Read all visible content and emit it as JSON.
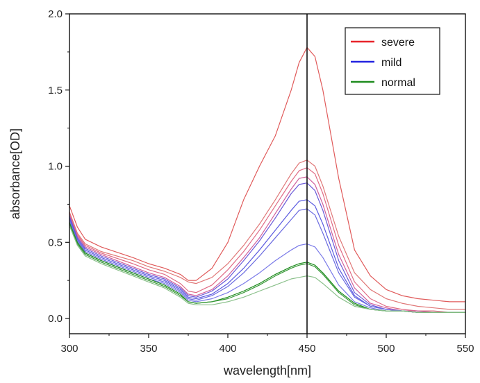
{
  "chart_data": {
    "type": "line",
    "title": "",
    "xlabel": "wavelength[nm]",
    "ylabel": "absorbance[OD]",
    "xlim": [
      300,
      550
    ],
    "ylim": [
      -0.1,
      2.0
    ],
    "x_ticks": [
      "300",
      "350",
      "400",
      "450",
      "500",
      "550"
    ],
    "y_ticks": [
      "0.0",
      "0.5",
      "1.0",
      "1.5",
      "2.0"
    ],
    "grid": false,
    "legend_position": "top-right",
    "reference_line_x": 450,
    "legend": [
      {
        "label": "severe",
        "color": "#e8242a"
      },
      {
        "label": "mild",
        "color": "#2323e0"
      },
      {
        "label": "normal",
        "color": "#1e8c1e"
      }
    ],
    "series": [
      {
        "group": "severe",
        "color": "#e05a5a",
        "x": [
          300,
          305,
          310,
          320,
          340,
          350,
          360,
          370,
          375,
          380,
          390,
          400,
          410,
          420,
          430,
          440,
          445,
          450,
          455,
          460,
          470,
          480,
          490,
          500,
          510,
          520,
          530,
          540,
          550
        ],
        "y": [
          0.74,
          0.6,
          0.52,
          0.47,
          0.4,
          0.36,
          0.33,
          0.29,
          0.25,
          0.25,
          0.33,
          0.5,
          0.78,
          1.0,
          1.2,
          1.5,
          1.68,
          1.78,
          1.72,
          1.5,
          0.92,
          0.45,
          0.28,
          0.19,
          0.15,
          0.13,
          0.12,
          0.11,
          0.11
        ]
      },
      {
        "group": "severe",
        "color": "#e07878",
        "x": [
          300,
          305,
          310,
          320,
          340,
          350,
          360,
          370,
          375,
          380,
          390,
          400,
          410,
          420,
          430,
          440,
          445,
          450,
          455,
          460,
          470,
          480,
          490,
          500,
          510,
          520,
          530,
          540,
          550
        ],
        "y": [
          0.7,
          0.56,
          0.49,
          0.44,
          0.38,
          0.34,
          0.31,
          0.27,
          0.24,
          0.23,
          0.27,
          0.36,
          0.48,
          0.62,
          0.78,
          0.95,
          1.02,
          1.04,
          1.0,
          0.87,
          0.54,
          0.3,
          0.19,
          0.13,
          0.1,
          0.08,
          0.07,
          0.06,
          0.06
        ]
      },
      {
        "group": "severe",
        "color": "#e06b85",
        "x": [
          300,
          305,
          310,
          320,
          340,
          350,
          360,
          370,
          375,
          380,
          390,
          400,
          410,
          420,
          430,
          440,
          445,
          450,
          455,
          460,
          470,
          480,
          490,
          500,
          510,
          520,
          530,
          540,
          550
        ],
        "y": [
          0.69,
          0.55,
          0.48,
          0.43,
          0.36,
          0.32,
          0.29,
          0.23,
          0.18,
          0.17,
          0.22,
          0.32,
          0.44,
          0.58,
          0.74,
          0.9,
          0.97,
          0.99,
          0.95,
          0.82,
          0.48,
          0.24,
          0.13,
          0.08,
          0.06,
          0.05,
          0.05,
          0.04,
          0.04
        ]
      },
      {
        "group": "severe",
        "color": "#d0609c",
        "x": [
          300,
          305,
          310,
          320,
          340,
          350,
          360,
          370,
          375,
          380,
          390,
          400,
          410,
          420,
          430,
          440,
          445,
          450,
          455,
          460,
          470,
          480,
          490,
          500,
          510,
          520,
          530,
          540,
          550
        ],
        "y": [
          0.68,
          0.54,
          0.47,
          0.42,
          0.34,
          0.3,
          0.27,
          0.21,
          0.16,
          0.15,
          0.19,
          0.28,
          0.4,
          0.53,
          0.69,
          0.85,
          0.92,
          0.93,
          0.88,
          0.75,
          0.42,
          0.2,
          0.1,
          0.07,
          0.05,
          0.05,
          0.04,
          0.04,
          0.04
        ]
      },
      {
        "group": "mild",
        "color": "#6a5ad8",
        "x": [
          300,
          305,
          310,
          320,
          340,
          350,
          360,
          370,
          375,
          380,
          390,
          400,
          410,
          420,
          430,
          440,
          445,
          450,
          455,
          460,
          470,
          480,
          490,
          500,
          510,
          520,
          530,
          540,
          550
        ],
        "y": [
          0.67,
          0.53,
          0.46,
          0.41,
          0.33,
          0.29,
          0.26,
          0.2,
          0.15,
          0.14,
          0.18,
          0.26,
          0.38,
          0.51,
          0.66,
          0.82,
          0.88,
          0.89,
          0.84,
          0.71,
          0.38,
          0.17,
          0.09,
          0.06,
          0.05,
          0.04,
          0.04,
          0.04,
          0.04
        ]
      },
      {
        "group": "mild",
        "color": "#5a5ae0",
        "x": [
          300,
          305,
          310,
          320,
          340,
          350,
          360,
          370,
          375,
          380,
          390,
          400,
          410,
          420,
          430,
          440,
          445,
          450,
          455,
          460,
          470,
          480,
          490,
          500,
          510,
          520,
          530,
          540,
          550
        ],
        "y": [
          0.66,
          0.52,
          0.45,
          0.4,
          0.32,
          0.28,
          0.25,
          0.19,
          0.14,
          0.13,
          0.16,
          0.23,
          0.33,
          0.45,
          0.58,
          0.71,
          0.77,
          0.78,
          0.74,
          0.62,
          0.33,
          0.15,
          0.08,
          0.06,
          0.05,
          0.04,
          0.04,
          0.04,
          0.04
        ]
      },
      {
        "group": "mild",
        "color": "#6a6ae0",
        "x": [
          300,
          305,
          310,
          320,
          340,
          350,
          360,
          370,
          375,
          380,
          390,
          400,
          410,
          420,
          430,
          440,
          445,
          450,
          455,
          460,
          470,
          480,
          490,
          500,
          510,
          520,
          530,
          540,
          550
        ],
        "y": [
          0.65,
          0.51,
          0.44,
          0.39,
          0.31,
          0.27,
          0.24,
          0.18,
          0.13,
          0.12,
          0.15,
          0.21,
          0.3,
          0.41,
          0.53,
          0.65,
          0.71,
          0.72,
          0.68,
          0.56,
          0.3,
          0.14,
          0.08,
          0.06,
          0.05,
          0.04,
          0.04,
          0.04,
          0.04
        ]
      },
      {
        "group": "mild",
        "color": "#7a7ae8",
        "x": [
          300,
          305,
          310,
          320,
          340,
          350,
          360,
          370,
          375,
          380,
          390,
          400,
          410,
          420,
          430,
          440,
          445,
          450,
          455,
          460,
          470,
          480,
          490,
          500,
          510,
          520,
          530,
          540,
          550
        ],
        "y": [
          0.64,
          0.5,
          0.43,
          0.38,
          0.3,
          0.26,
          0.23,
          0.17,
          0.12,
          0.11,
          0.13,
          0.17,
          0.23,
          0.3,
          0.38,
          0.45,
          0.48,
          0.49,
          0.47,
          0.4,
          0.22,
          0.11,
          0.07,
          0.05,
          0.05,
          0.04,
          0.04,
          0.04,
          0.04
        ]
      },
      {
        "group": "normal",
        "color": "#1e8c1e",
        "x": [
          300,
          305,
          310,
          320,
          340,
          350,
          360,
          370,
          375,
          380,
          390,
          400,
          410,
          420,
          430,
          440,
          445,
          450,
          455,
          460,
          470,
          480,
          490,
          500,
          510,
          520,
          530,
          540,
          550
        ],
        "y": [
          0.63,
          0.5,
          0.43,
          0.38,
          0.3,
          0.26,
          0.22,
          0.16,
          0.11,
          0.1,
          0.11,
          0.14,
          0.18,
          0.23,
          0.29,
          0.34,
          0.36,
          0.37,
          0.35,
          0.3,
          0.18,
          0.1,
          0.06,
          0.05,
          0.05,
          0.04,
          0.04,
          0.04,
          0.04
        ]
      },
      {
        "group": "normal",
        "color": "#3a9a3a",
        "x": [
          300,
          305,
          310,
          320,
          340,
          350,
          360,
          370,
          375,
          380,
          390,
          400,
          410,
          420,
          430,
          440,
          445,
          450,
          455,
          460,
          470,
          480,
          490,
          500,
          510,
          520,
          530,
          540,
          550
        ],
        "y": [
          0.62,
          0.49,
          0.42,
          0.37,
          0.29,
          0.25,
          0.21,
          0.15,
          0.11,
          0.1,
          0.11,
          0.13,
          0.17,
          0.22,
          0.28,
          0.33,
          0.35,
          0.36,
          0.34,
          0.29,
          0.17,
          0.09,
          0.06,
          0.05,
          0.05,
          0.04,
          0.04,
          0.04,
          0.04
        ]
      },
      {
        "group": "normal",
        "color": "#8ac08a",
        "x": [
          300,
          305,
          310,
          320,
          340,
          350,
          360,
          370,
          375,
          380,
          390,
          400,
          410,
          420,
          430,
          440,
          445,
          450,
          455,
          460,
          470,
          480,
          490,
          500,
          510,
          520,
          530,
          540,
          550
        ],
        "y": [
          0.61,
          0.48,
          0.41,
          0.36,
          0.28,
          0.24,
          0.2,
          0.14,
          0.1,
          0.09,
          0.09,
          0.11,
          0.14,
          0.18,
          0.22,
          0.26,
          0.27,
          0.28,
          0.27,
          0.23,
          0.14,
          0.08,
          0.06,
          0.05,
          0.05,
          0.04,
          0.04,
          0.04,
          0.04
        ]
      }
    ]
  }
}
